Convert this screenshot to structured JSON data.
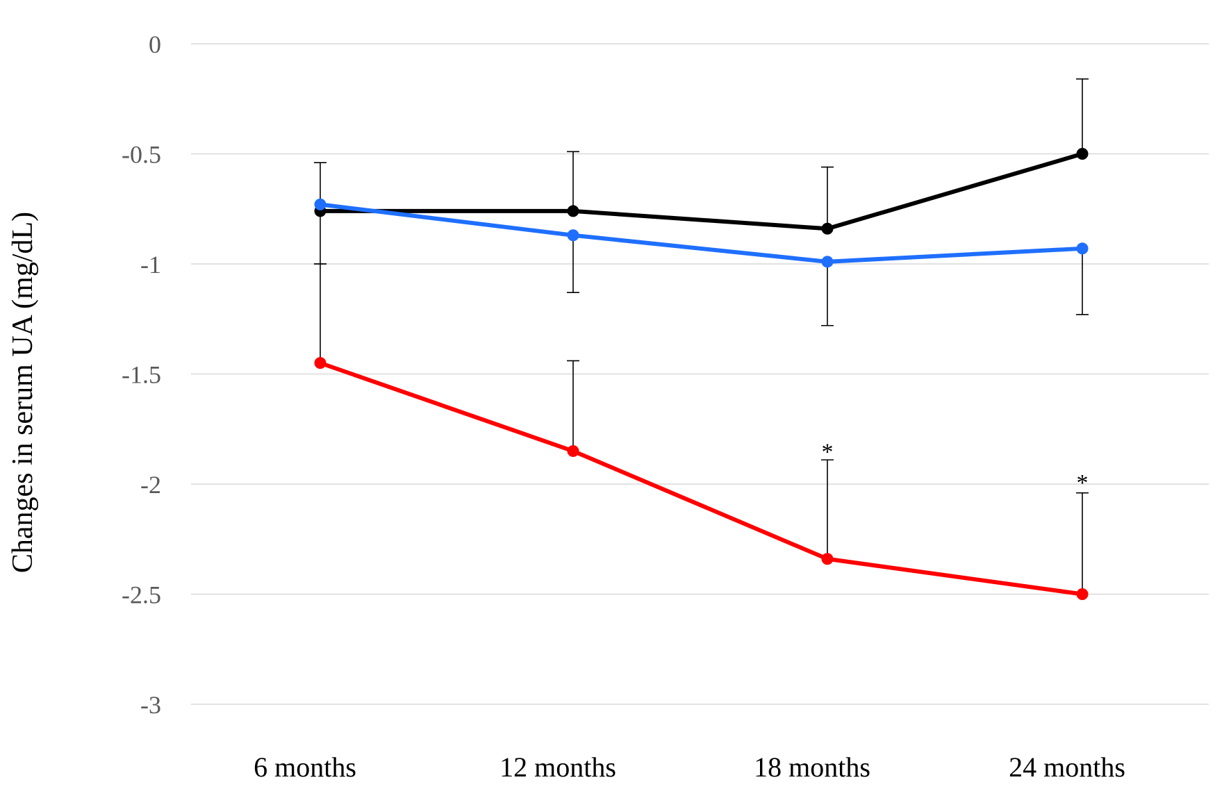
{
  "chart_data": {
    "type": "line",
    "title": "",
    "xlabel": "",
    "ylabel": "Changes in serum UA (mg/dL)",
    "categories": [
      "6 months",
      "12 months",
      "18 months",
      "24 months"
    ],
    "ylim": [
      -3,
      0
    ],
    "yticks": [
      0,
      -0.5,
      -1,
      -1.5,
      -2,
      -2.5,
      -3
    ],
    "ytick_labels": [
      "0",
      "-0.5",
      "-1",
      "-1.5",
      "-2",
      "-2.5",
      "-3"
    ],
    "grid": true,
    "legend": "none",
    "series": [
      {
        "color": "#000000",
        "values": [
          -0.76,
          -0.76,
          -0.84,
          -0.5
        ],
        "error_bars": [
          {
            "upper": -0.54,
            "lower": -1.0
          },
          {
            "upper": -0.49,
            "lower": null
          },
          {
            "upper": -0.56,
            "lower": null
          },
          {
            "upper": -0.16,
            "lower": null
          }
        ]
      },
      {
        "color": "#1f6fff",
        "values": [
          -0.73,
          -0.87,
          -0.99,
          -0.93
        ],
        "error_bars": [
          {
            "upper": null,
            "lower": null
          },
          {
            "upper": null,
            "lower": -1.13
          },
          {
            "upper": null,
            "lower": -1.28
          },
          {
            "upper": null,
            "lower": -1.23
          }
        ]
      },
      {
        "color": "#ff0000",
        "values": [
          -1.45,
          -1.85,
          -2.34,
          -2.5
        ],
        "error_bars": [
          {
            "upper": -1.0,
            "lower": null
          },
          {
            "upper": -1.44,
            "lower": null
          },
          {
            "upper": -1.89,
            "lower": null
          },
          {
            "upper": -2.04,
            "lower": null
          }
        ]
      }
    ],
    "annotations": [
      {
        "text": "*",
        "category_index": 2,
        "y": -1.85
      },
      {
        "text": "*",
        "category_index": 3,
        "y": -1.99
      }
    ]
  }
}
